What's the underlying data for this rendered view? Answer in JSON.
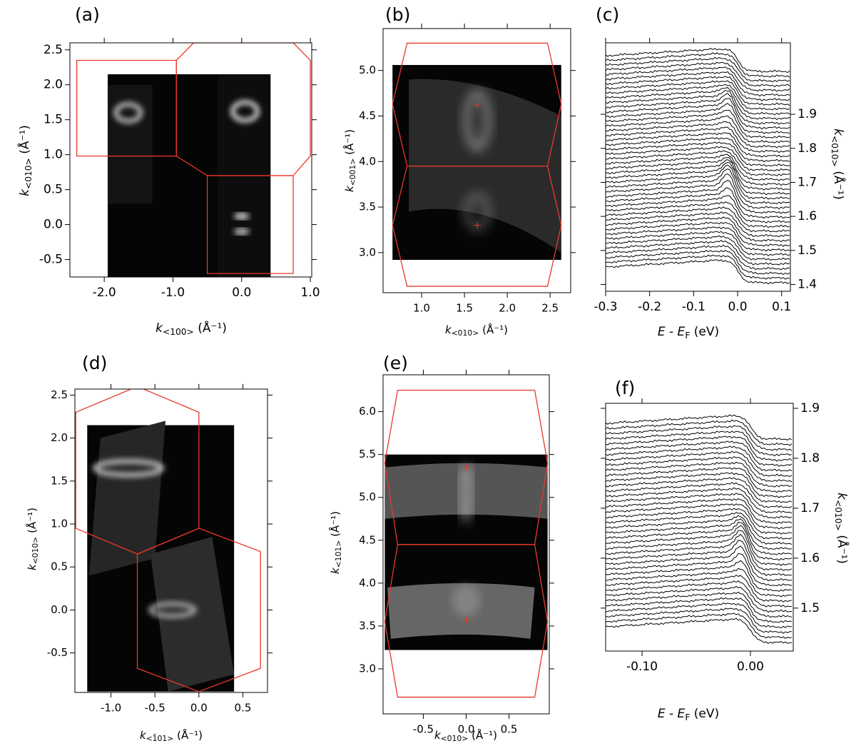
{
  "chart_data": [
    {
      "type": "image",
      "panel_label": "(a)",
      "x_label": {
        "symbol": "k",
        "subscript": "<100>",
        "unit": "(Å⁻¹)"
      },
      "y_label": {
        "symbol": "k",
        "subscript": "<010>",
        "unit": "(Å⁻¹)"
      },
      "xlim": [
        -2.5,
        1.02
      ],
      "ylim": [
        -0.75,
        2.6
      ],
      "xticks": [
        {
          "value": -2,
          "label": "-2.0"
        },
        {
          "value": -1,
          "label": "-1.0"
        },
        {
          "value": 0,
          "label": "0.0"
        },
        {
          "value": 1,
          "label": "1.0"
        }
      ],
      "yticks": [
        -0.5,
        {
          "value": 0,
          "label": "0.0"
        },
        0.5,
        {
          "value": 1,
          "label": "1.0"
        },
        1.5,
        {
          "value": 2,
          "label": "2.0"
        },
        2.5
      ],
      "y_axis_side": "left"
    },
    {
      "type": "image",
      "panel_label": "(b)",
      "x_label": {
        "symbol": "k",
        "subscript": "<010>",
        "unit": "(Å⁻¹)"
      },
      "y_label": {
        "symbol": "k",
        "subscript": "<001>",
        "unit": "(Å⁻¹)"
      },
      "xlim": [
        0.55,
        2.74
      ],
      "ylim": [
        2.56,
        5.46
      ],
      "xticks": [
        {
          "value": 1,
          "label": "1.0"
        },
        1.5,
        {
          "value": 2,
          "label": "2.0"
        },
        2.5
      ],
      "yticks": [
        {
          "value": 3,
          "label": "3.0"
        },
        3.5,
        {
          "value": 4,
          "label": "4.0"
        },
        4.5,
        {
          "value": 5,
          "label": "5.0"
        }
      ],
      "y_axis_side": "left"
    },
    {
      "type": "waterfall",
      "panel_label": "(c)",
      "x_label": {
        "symbol": "E - E",
        "subscript": "F",
        "unit": "(eV)"
      },
      "y_label": {
        "symbol": "k",
        "subscript": "<010>",
        "unit": "(Å⁻¹)"
      },
      "xlim": [
        -0.3,
        0.12
      ],
      "ylim": [
        1.38,
        2.11
      ],
      "xticks": [
        -0.3,
        -0.2,
        -0.1,
        {
          "value": 0,
          "label": "0.0"
        },
        0.1
      ],
      "yticks": [
        1.4,
        1.5,
        1.6,
        1.7,
        1.8,
        1.9
      ],
      "y_axis_side": "right"
    },
    {
      "type": "image",
      "panel_label": "(d)",
      "x_label": {
        "symbol": "k",
        "subscript": "<1̄01>",
        "unit": "(Å⁻¹)"
      },
      "y_label": {
        "symbol": "k",
        "subscript": "<010>",
        "unit": "(Å⁻¹)"
      },
      "xlim": [
        -1.41,
        0.78
      ],
      "ylim": [
        -0.96,
        2.57
      ],
      "xticks": [
        {
          "value": -1,
          "label": "-1.0"
        },
        -0.5,
        {
          "value": 0,
          "label": "0.0"
        },
        0.5
      ],
      "yticks": [
        -0.5,
        {
          "value": 0,
          "label": "0.0"
        },
        0.5,
        {
          "value": 1,
          "label": "1.0"
        },
        1.5,
        {
          "value": 2,
          "label": "2.0"
        },
        2.5
      ],
      "y_axis_side": "left"
    },
    {
      "type": "image",
      "panel_label": "(e)",
      "x_label": {
        "symbol": "k",
        "subscript": "<010>",
        "unit": "(Å⁻¹)"
      },
      "y_label": {
        "symbol": "k",
        "subscript": "<101>",
        "unit": "(Å⁻¹)"
      },
      "xlim": [
        -0.97,
        0.97
      ],
      "ylim": [
        2.475,
        6.43
      ],
      "xticks": [
        -0.5,
        {
          "value": 0,
          "label": "0.0"
        },
        0.5
      ],
      "yticks": [
        {
          "value": 3,
          "label": "3.0"
        },
        3.5,
        {
          "value": 4,
          "label": "4.0"
        },
        4.5,
        {
          "value": 5,
          "label": "5.0"
        },
        5.5,
        {
          "value": 6,
          "label": "6.0"
        }
      ],
      "y_axis_side": "left"
    },
    {
      "type": "waterfall",
      "panel_label": "(f)",
      "x_label": {
        "symbol": "E - E",
        "subscript": "F",
        "unit": "(eV)"
      },
      "y_label": {
        "symbol": "k",
        "subscript": "<010>",
        "unit": "(Å⁻¹)"
      },
      "xlim": [
        -0.1336,
        0.0395
      ],
      "ylim": [
        1.414,
        1.91
      ],
      "xticks": [
        {
          "value": -0.1,
          "label": "-0.10"
        },
        {
          "value": 0,
          "label": "0.00"
        }
      ],
      "yticks": [
        1.5,
        1.6,
        1.7,
        1.8,
        1.9
      ],
      "y_axis_side": "right"
    }
  ]
}
